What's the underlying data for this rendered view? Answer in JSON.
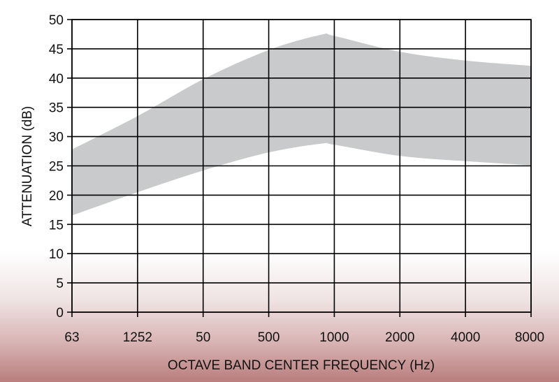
{
  "chart_data": {
    "type": "area",
    "title": "",
    "xlabel": "OCTAVE BAND CENTER FREQUENCY (Hz)",
    "ylabel": "ATTENUATION (dB)",
    "categories": [
      "63",
      "1252",
      "50",
      "500",
      "1000",
      "2000",
      "4000",
      "8000"
    ],
    "ylim": [
      0,
      50
    ],
    "yticks": [
      0,
      5,
      10,
      15,
      20,
      25,
      30,
      35,
      40,
      45,
      50
    ],
    "grid": true,
    "band": {
      "upper": [
        {
          "x": 0,
          "y": 27.8
        },
        {
          "x": 1,
          "y": 33.5
        },
        {
          "x": 2,
          "y": 39.8
        },
        {
          "x": 3,
          "y": 44.8
        },
        {
          "x": 3.8,
          "y": 47.4
        },
        {
          "x": 4,
          "y": 47.2
        },
        {
          "x": 5,
          "y": 44.5
        },
        {
          "x": 6,
          "y": 43.0
        },
        {
          "x": 7,
          "y": 42.1
        }
      ],
      "lower": [
        {
          "x": 0,
          "y": 16.5
        },
        {
          "x": 1,
          "y": 20.5
        },
        {
          "x": 2,
          "y": 24.2
        },
        {
          "x": 3,
          "y": 27.3
        },
        {
          "x": 3.8,
          "y": 28.8
        },
        {
          "x": 4,
          "y": 28.6
        },
        {
          "x": 5,
          "y": 26.7
        },
        {
          "x": 6,
          "y": 25.8
        },
        {
          "x": 7,
          "y": 25.1
        }
      ]
    },
    "colors": {
      "band": "#c9cacb",
      "grid": "#000000",
      "text": "#111111"
    }
  }
}
